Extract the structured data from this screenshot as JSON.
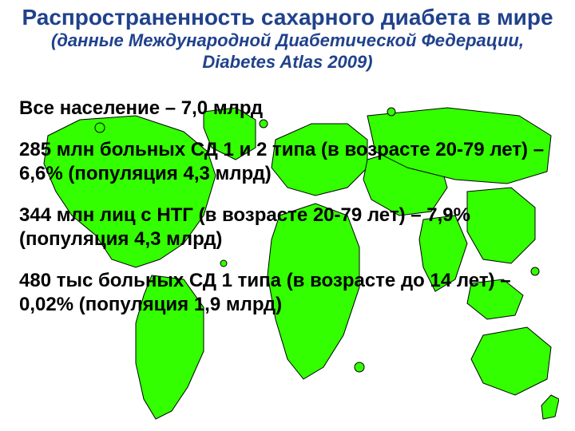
{
  "title": {
    "text": "Распространенность сахарного диабета в мире",
    "color": "#20428c",
    "fontsize": 28
  },
  "subtitle": {
    "text": "(данные Международной Диабетической Федерации, Diabetes Atlas 2009)",
    "color": "#20428c",
    "fontsize": 22
  },
  "body": {
    "color": "#000000",
    "fontsize": 24,
    "paragraphs": [
      "Все население – 7,0 млрд",
      "285 млн больных СД 1 и 2 типа (в возрасте 20-79 лет) – 6,6% (популяция 4,3 млрд)",
      "344 млн лиц с НТГ (в возрасте 20-79 лет) – 7,9% (популяция 4,3 млрд)",
      "480 тыс больных СД 1 типа (в возрасте до 14 лет) – 0,02% (популяция 1,9 млрд)"
    ]
  },
  "map": {
    "fill": "#33ff00",
    "stroke": "#000000",
    "stroke_width": 1
  },
  "background_color": "#ffffff"
}
